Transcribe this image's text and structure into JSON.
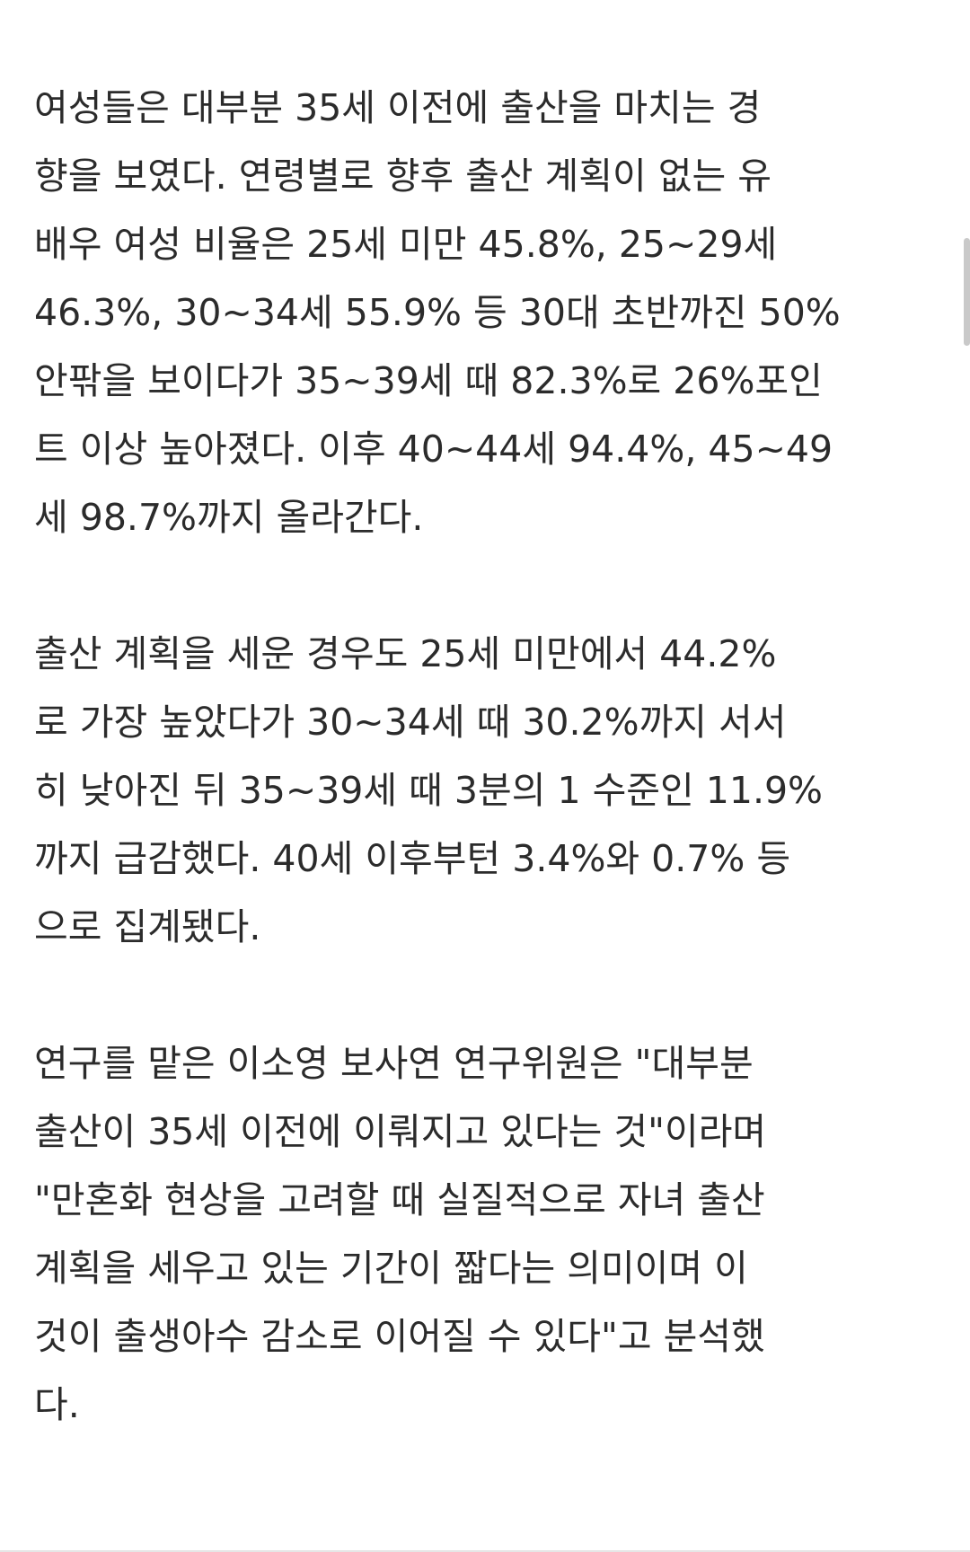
{
  "article": {
    "paragraphs": [
      {
        "lines": [
          "여성들은 대부분 35세 이전에 출산을 마치는 경",
          "향을 보였다. 연령별로 향후 출산 계획이 없는 유",
          "배우 여성 비율은 25세 미만 45.8%, 25~29세",
          "46.3%, 30~34세 55.9% 등 30대 초반까진 50%",
          "안팎을 보이다가 35~39세 때 82.3%로 26%포인",
          "트 이상 높아졌다. 이후 40~44세 94.4%, 45~49",
          "세 98.7%까지 올라간다."
        ]
      },
      {
        "lines": [
          "출산 계획을 세운 경우도 25세 미만에서 44.2%",
          "로 가장 높았다가 30~34세 때 30.2%까지 서서",
          "히 낮아진 뒤 35~39세 때 3분의 1 수준인 11.9%",
          "까지 급감했다. 40세 이후부턴 3.4%와 0.7% 등",
          "으로 집계됐다."
        ]
      },
      {
        "lines": [
          "연구를 맡은 이소영 보사연 연구위원은 \"대부분",
          "출산이 35세 이전에 이뤄지고 있다는 것\"이라며",
          "\"만혼화 현상을 고려할 때 실질적으로 자녀 출산",
          "계획을 세우고 있는 기간이 짧다는 의미이며 이",
          "것이 출생아수 감소로 이어질 수 있다\"고 분석했",
          "다."
        ]
      }
    ]
  }
}
